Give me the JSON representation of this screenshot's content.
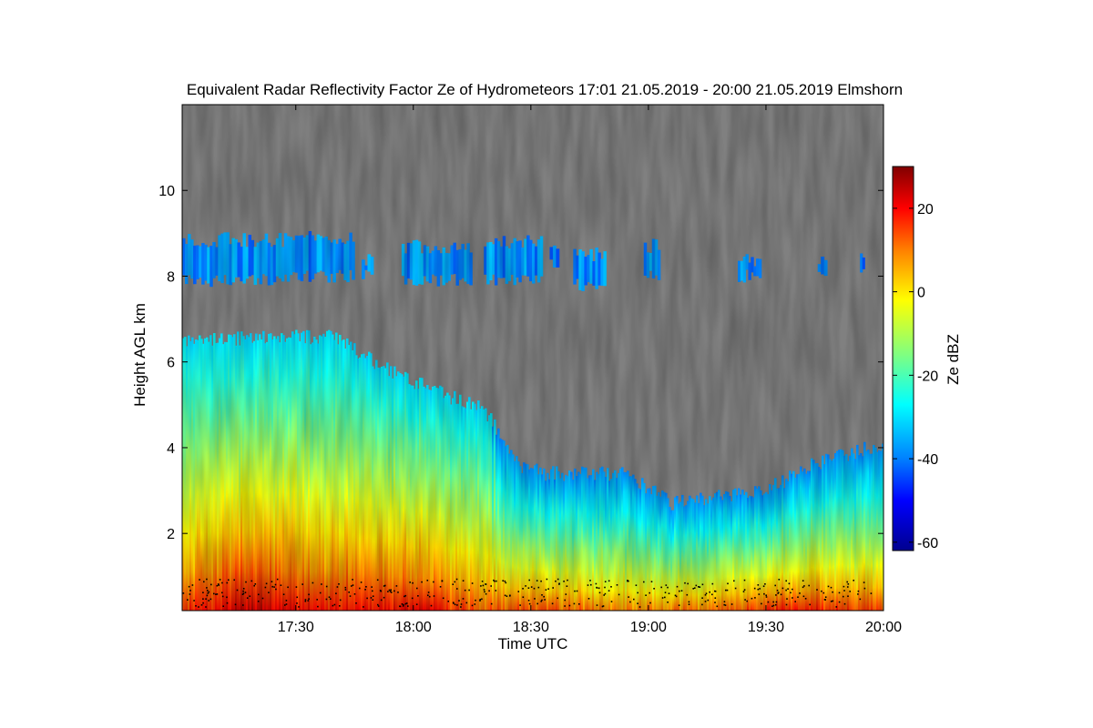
{
  "chart_data": {
    "type": "heatmap",
    "title": "Equivalent Radar Reflectivity Factor Ze of Hydrometeors   17:01 21.05.2019 - 20:00 21.05.2019 Elmshorn",
    "xlabel": "Time UTC",
    "ylabel": "Height AGL km",
    "x_range_hours": [
      17.0167,
      20.0
    ],
    "x_ticks": [
      {
        "value": 17.5,
        "label": "17:30"
      },
      {
        "value": 18.0,
        "label": "18:00"
      },
      {
        "value": 18.5,
        "label": "18:30"
      },
      {
        "value": 19.0,
        "label": "19:00"
      },
      {
        "value": 19.5,
        "label": "19:30"
      },
      {
        "value": 20.0,
        "label": "20:00"
      }
    ],
    "ylim": [
      0.2,
      12.0
    ],
    "y_ticks": [
      {
        "value": 2,
        "label": "2"
      },
      {
        "value": 4,
        "label": "4"
      },
      {
        "value": 6,
        "label": "6"
      },
      {
        "value": 8,
        "label": "8"
      },
      {
        "value": 10,
        "label": "10"
      }
    ],
    "background_color": "#808080",
    "colorbar": {
      "label": "Ze dBZ",
      "range": [
        -62,
        30
      ],
      "ticks": [
        {
          "value": 20,
          "label": "20"
        },
        {
          "value": 0,
          "label": "0"
        },
        {
          "value": -20,
          "label": "-20"
        },
        {
          "value": -40,
          "label": "-40"
        },
        {
          "value": -60,
          "label": "-60"
        }
      ],
      "colormap_stops": [
        {
          "value": -62,
          "color": "#00008f"
        },
        {
          "value": -50,
          "color": "#0000ff"
        },
        {
          "value": -40,
          "color": "#0080ff"
        },
        {
          "value": -27,
          "color": "#00ffff"
        },
        {
          "value": -15,
          "color": "#80ff80"
        },
        {
          "value": -2,
          "color": "#ffff00"
        },
        {
          "value": 10,
          "color": "#ff8000"
        },
        {
          "value": 20,
          "color": "#ff0000"
        },
        {
          "value": 30,
          "color": "#800000"
        }
      ]
    },
    "echo_layers": [
      {
        "name": "upper ice cloud layer",
        "segments": [
          {
            "t_start": 17.0167,
            "t_end": 17.45,
            "base_km": 7.9,
            "top_km": 8.85,
            "dbz": -38
          },
          {
            "t_start": 17.45,
            "t_end": 17.75,
            "base_km": 8.0,
            "top_km": 8.9,
            "dbz": -38
          },
          {
            "t_start": 17.78,
            "t_end": 17.83,
            "base_km": 8.0,
            "top_km": 8.4,
            "dbz": -38
          },
          {
            "t_start": 17.95,
            "t_end": 18.25,
            "base_km": 7.9,
            "top_km": 8.7,
            "dbz": -38
          },
          {
            "t_start": 18.3,
            "t_end": 18.55,
            "base_km": 7.9,
            "top_km": 8.8,
            "dbz": -38
          },
          {
            "t_start": 18.58,
            "t_end": 18.62,
            "base_km": 8.3,
            "top_km": 8.6,
            "dbz": -40
          },
          {
            "t_start": 18.68,
            "t_end": 18.82,
            "base_km": 7.8,
            "top_km": 8.5,
            "dbz": -38
          },
          {
            "t_start": 18.98,
            "t_end": 19.05,
            "base_km": 8.0,
            "top_km": 8.7,
            "dbz": -38
          },
          {
            "t_start": 19.38,
            "t_end": 19.48,
            "base_km": 8.0,
            "top_km": 8.4,
            "dbz": -38
          },
          {
            "t_start": 19.72,
            "t_end": 19.76,
            "base_km": 8.1,
            "top_km": 8.3,
            "dbz": -40
          },
          {
            "t_start": 19.9,
            "t_end": 19.92,
            "base_km": 8.2,
            "top_km": 8.4,
            "dbz": -40
          }
        ]
      },
      {
        "name": "precipitating cloud",
        "top_profile": [
          {
            "t": 17.0167,
            "top_km": 6.5
          },
          {
            "t": 17.3,
            "top_km": 6.55
          },
          {
            "t": 17.65,
            "top_km": 6.6
          },
          {
            "t": 17.9,
            "top_km": 5.8
          },
          {
            "t": 18.1,
            "top_km": 5.3
          },
          {
            "t": 18.3,
            "top_km": 4.9
          },
          {
            "t": 18.45,
            "top_km": 3.6
          },
          {
            "t": 18.55,
            "top_km": 3.4
          },
          {
            "t": 18.9,
            "top_km": 3.4
          },
          {
            "t": 19.1,
            "top_km": 2.7
          },
          {
            "t": 19.5,
            "top_km": 3.0
          },
          {
            "t": 19.7,
            "top_km": 3.6
          },
          {
            "t": 20.0,
            "top_km": 4.1
          }
        ],
        "reflectivity_profile": [
          {
            "t": 17.0167,
            "near_surface_dbz": 15
          },
          {
            "t": 17.3,
            "near_surface_dbz": 25
          },
          {
            "t": 17.6,
            "near_surface_dbz": 18
          },
          {
            "t": 18.0,
            "near_surface_dbz": 22
          },
          {
            "t": 18.3,
            "near_surface_dbz": 12
          },
          {
            "t": 18.5,
            "near_surface_dbz": 15
          },
          {
            "t": 18.9,
            "near_surface_dbz": 8
          },
          {
            "t": 19.2,
            "near_surface_dbz": 10
          },
          {
            "t": 19.6,
            "near_surface_dbz": 18
          },
          {
            "t": 20.0,
            "near_surface_dbz": 14
          }
        ]
      }
    ]
  }
}
